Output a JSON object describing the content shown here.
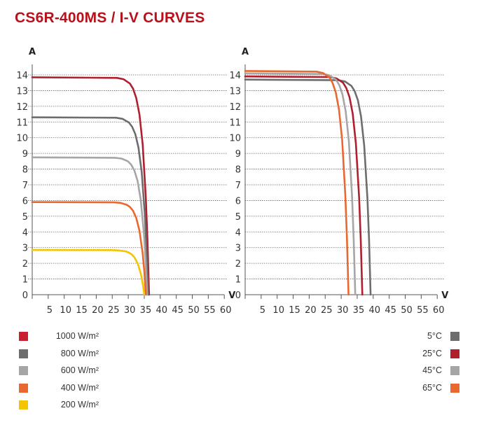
{
  "title": "CS6R-400MS / I-V CURVES",
  "chart_data": [
    {
      "type": "line",
      "xlabel": "V",
      "ylabel": "A",
      "xlim": [
        0,
        60
      ],
      "ylim": [
        0,
        14
      ],
      "x_ticks": [
        "5",
        "10",
        "15",
        "20",
        "25",
        "30",
        "35",
        "40",
        "45",
        "50",
        "55",
        "60"
      ],
      "y_ticks": [
        "0",
        "1",
        "2",
        "3",
        "4",
        "5",
        "6",
        "7",
        "8",
        "9",
        "10",
        "11",
        "12",
        "13",
        "14"
      ],
      "grid": "horizontal dotted",
      "legend_placement": "bottom-left",
      "series": [
        {
          "name": "1000 W/m²",
          "color": "#b01f2e",
          "points": [
            [
              0,
              13.85
            ],
            [
              26.5,
              13.81
            ],
            [
              28.5,
              13.73
            ],
            [
              30.5,
              13.45
            ],
            [
              31.5,
              13.12
            ],
            [
              32.5,
              12.53
            ],
            [
              33.5,
              11.48
            ],
            [
              34.5,
              9.58
            ],
            [
              35.5,
              6.16
            ],
            [
              36,
              3.53
            ],
            [
              36.5,
              0
            ]
          ]
        },
        {
          "name": "800 W/m²",
          "color": "#6d6d6d",
          "points": [
            [
              0,
              11.3
            ],
            [
              26.2,
              11.27
            ],
            [
              28.2,
              11.2
            ],
            [
              30.2,
              10.97
            ],
            [
              31.2,
              10.7
            ],
            [
              32.2,
              10.23
            ],
            [
              33.2,
              9.37
            ],
            [
              34.2,
              7.82
            ],
            [
              35.2,
              5.03
            ],
            [
              35.7,
              2.88
            ],
            [
              36.2,
              0
            ]
          ]
        },
        {
          "name": "600 W/m²",
          "color": "#a6a6a6",
          "points": [
            [
              0,
              8.75
            ],
            [
              25.9,
              8.72
            ],
            [
              27.9,
              8.67
            ],
            [
              29.9,
              8.5
            ],
            [
              30.9,
              8.29
            ],
            [
              31.9,
              7.92
            ],
            [
              32.9,
              7.25
            ],
            [
              33.9,
              6.06
            ],
            [
              34.9,
              3.89
            ],
            [
              35.4,
              2.23
            ],
            [
              35.9,
              0
            ]
          ]
        },
        {
          "name": "400 W/m²",
          "color": "#e8692f",
          "points": [
            [
              0,
              5.9
            ],
            [
              25.5,
              5.88
            ],
            [
              27.5,
              5.85
            ],
            [
              29.5,
              5.73
            ],
            [
              30.5,
              5.59
            ],
            [
              31.5,
              5.34
            ],
            [
              32.5,
              4.89
            ],
            [
              33.5,
              4.08
            ],
            [
              34.5,
              2.63
            ],
            [
              35,
              1.5
            ],
            [
              35.5,
              0
            ]
          ]
        },
        {
          "name": "200 W/m²",
          "color": "#f5c400",
          "points": [
            [
              0,
              2.85
            ],
            [
              25,
              2.84
            ],
            [
              27,
              2.82
            ],
            [
              29,
              2.77
            ],
            [
              30,
              2.7
            ],
            [
              31,
              2.58
            ],
            [
              32,
              2.36
            ],
            [
              33,
              1.97
            ],
            [
              34,
              1.27
            ],
            [
              34.5,
              0.73
            ],
            [
              35,
              0
            ]
          ]
        }
      ]
    },
    {
      "type": "line",
      "xlabel": "V",
      "ylabel": "A",
      "xlim": [
        0,
        60
      ],
      "ylim": [
        0,
        14
      ],
      "x_ticks": [
        "5",
        "10",
        "15",
        "20",
        "25",
        "30",
        "35",
        "40",
        "45",
        "50",
        "55",
        "60"
      ],
      "y_ticks": [
        "0",
        "1",
        "2",
        "3",
        "4",
        "5",
        "6",
        "7",
        "8",
        "9",
        "10",
        "11",
        "12",
        "13",
        "14"
      ],
      "grid": "horizontal dotted",
      "legend_placement": "bottom-right",
      "series": [
        {
          "name": "5°C",
          "color": "#6d6d6d",
          "points": [
            [
              0,
              13.7
            ],
            [
              29.2,
              13.66
            ],
            [
              31.2,
              13.58
            ],
            [
              33.2,
              13.3
            ],
            [
              34.2,
              12.97
            ],
            [
              35.2,
              12.4
            ],
            [
              36.2,
              11.36
            ],
            [
              37.2,
              9.48
            ],
            [
              38.2,
              6.1
            ],
            [
              38.7,
              3.49
            ],
            [
              39.2,
              0
            ]
          ]
        },
        {
          "name": "25°C",
          "color": "#b01f2e",
          "points": [
            [
              0,
              13.9
            ],
            [
              26.6,
              13.86
            ],
            [
              28.6,
              13.77
            ],
            [
              30.6,
              13.5
            ],
            [
              31.6,
              13.16
            ],
            [
              32.6,
              12.58
            ],
            [
              33.6,
              11.52
            ],
            [
              34.6,
              9.62
            ],
            [
              35.6,
              6.19
            ],
            [
              36.1,
              3.54
            ],
            [
              36.6,
              0
            ]
          ]
        },
        {
          "name": "45°C",
          "color": "#a6a6a6",
          "points": [
            [
              0,
              14.1
            ],
            [
              24.4,
              14.06
            ],
            [
              26.4,
              13.97
            ],
            [
              28.4,
              13.69
            ],
            [
              29.4,
              13.35
            ],
            [
              30.4,
              12.76
            ],
            [
              31.4,
              11.69
            ],
            [
              32.4,
              9.76
            ],
            [
              33.4,
              6.27
            ],
            [
              33.9,
              3.6
            ],
            [
              34.4,
              0
            ]
          ]
        },
        {
          "name": "65°C",
          "color": "#e8692f",
          "points": [
            [
              0,
              14.25
            ],
            [
              22.3,
              14.21
            ],
            [
              24.3,
              14.12
            ],
            [
              26.3,
              13.84
            ],
            [
              27.3,
              13.49
            ],
            [
              28.3,
              12.9
            ],
            [
              29.3,
              11.81
            ],
            [
              30.3,
              9.86
            ],
            [
              31.3,
              6.34
            ],
            [
              31.8,
              3.63
            ],
            [
              32.3,
              0
            ]
          ]
        }
      ]
    }
  ],
  "legend_colors": {
    "1000": "#c8202f",
    "800": "#6d6d6d",
    "600": "#a6a6a6",
    "400": "#e8692f",
    "200": "#f5c400"
  }
}
